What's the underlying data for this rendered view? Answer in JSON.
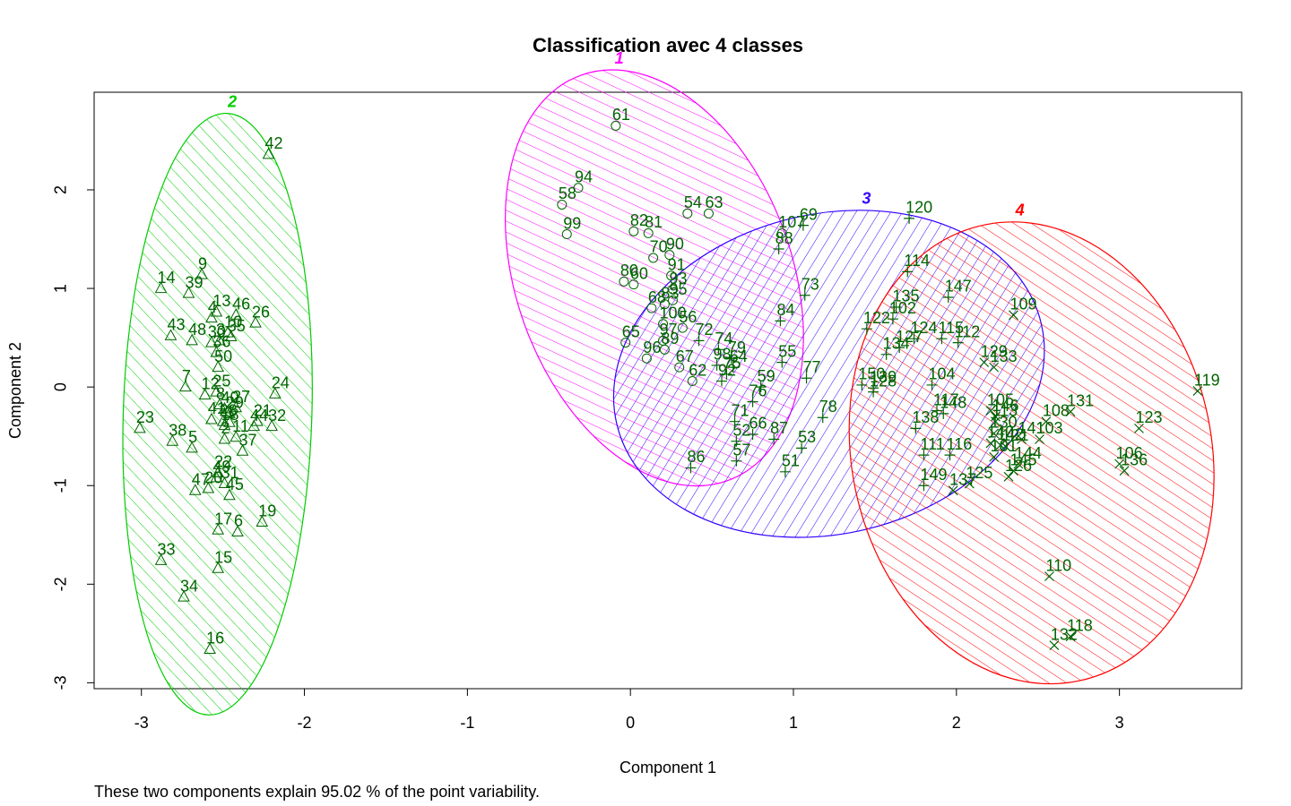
{
  "chart_data": {
    "type": "scatter",
    "title": "Classification avec 4 classes",
    "x_label": "Component 1",
    "y_label": "Component 2",
    "caption": "These two components explain 95.02 % of the point variability.",
    "xlim": [
      -3.29,
      3.75
    ],
    "ylim": [
      -3.06,
      2.99
    ],
    "xticks": [
      -3,
      -2,
      -1,
      0,
      1,
      2,
      3
    ],
    "yticks": [
      -3,
      -2,
      -1,
      0,
      1,
      2
    ],
    "point_color": "#006400",
    "shade": true,
    "series": [
      {
        "name": "1",
        "color": "#ff00ff",
        "marker": "circle",
        "labels": [
          61,
          94,
          58,
          99,
          54,
          63,
          82,
          81,
          70,
          90,
          91,
          80,
          60,
          93,
          68,
          83,
          95,
          100,
          56,
          65,
          97,
          89,
          96,
          62,
          67,
          107
        ],
        "x": [
          -0.09,
          -0.32,
          -0.42,
          -0.39,
          0.35,
          0.48,
          0.02,
          0.11,
          0.14,
          0.24,
          0.25,
          -0.04,
          0.02,
          0.26,
          0.13,
          0.21,
          0.26,
          0.2,
          0.32,
          -0.03,
          0.2,
          0.21,
          0.1,
          0.38,
          0.3,
          0.93
        ],
        "y": [
          2.65,
          2.02,
          1.85,
          1.55,
          1.76,
          1.76,
          1.58,
          1.56,
          1.31,
          1.34,
          1.13,
          1.07,
          1.04,
          0.99,
          0.8,
          0.84,
          0.88,
          0.64,
          0.6,
          0.45,
          0.47,
          0.38,
          0.29,
          0.06,
          0.2,
          1.56
        ]
      },
      {
        "name": "2",
        "color": "#00cc00",
        "marker": "triangle",
        "labels": [
          1,
          2,
          3,
          4,
          5,
          6,
          7,
          8,
          9,
          10,
          11,
          12,
          13,
          14,
          15,
          16,
          17,
          18,
          19,
          20,
          21,
          22,
          23,
          24,
          25,
          26,
          27,
          28,
          29,
          30,
          31,
          32,
          33,
          34,
          35,
          36,
          37,
          38,
          39,
          40,
          41,
          42,
          43,
          44,
          45,
          46,
          47,
          48,
          49,
          50
        ],
        "x": [
          -2.46,
          -2.49,
          -2.52,
          -2.57,
          -2.69,
          -2.41,
          -2.73,
          -2.52,
          -2.63,
          -2.47,
          -2.42,
          -2.61,
          -2.54,
          -2.88,
          -2.53,
          -2.58,
          -2.53,
          -2.49,
          -2.26,
          -2.59,
          -2.29,
          -2.53,
          -3.01,
          -2.18,
          -2.54,
          -2.3,
          -2.42,
          -2.5,
          -2.46,
          -2.57,
          -2.49,
          -2.2,
          -2.88,
          -2.74,
          -2.45,
          -2.54,
          -2.38,
          -2.81,
          -2.71,
          -2.49,
          -2.57,
          -2.22,
          -2.82,
          -2.31,
          -2.46,
          -2.42,
          -2.67,
          -2.69,
          -2.54,
          -2.53
        ],
        "y": [
          -0.36,
          -0.53,
          0.47,
          0.7,
          -0.62,
          -1.47,
          0.0,
          -0.18,
          1.14,
          0.55,
          -0.51,
          -0.08,
          0.76,
          1.0,
          -1.84,
          -2.66,
          -1.45,
          -0.39,
          -1.37,
          -1.03,
          -0.35,
          -0.87,
          -0.42,
          -0.07,
          -0.05,
          0.65,
          -0.21,
          -0.35,
          -0.27,
          0.45,
          -0.98,
          -0.4,
          -1.76,
          -2.13,
          0.51,
          0.35,
          -0.65,
          -0.55,
          0.95,
          -0.22,
          -0.33,
          2.36,
          0.52,
          -0.4,
          -1.1,
          0.73,
          -1.05,
          0.47,
          -0.92,
          0.2
        ]
      },
      {
        "name": "3",
        "color": "#3300ff",
        "marker": "plus",
        "labels": [
          69,
          120,
          114,
          73,
          135,
          102,
          147,
          122,
          84,
          124,
          115,
          112,
          134,
          127,
          72,
          74,
          79,
          98,
          64,
          75,
          92,
          55,
          77,
          59,
          150,
          139,
          128,
          104,
          76,
          117,
          148,
          78,
          138,
          71,
          66,
          87,
          52,
          53,
          57,
          111,
          116,
          86,
          51,
          149,
          88
        ],
        "x": [
          1.06,
          1.71,
          1.7,
          1.07,
          1.63,
          1.61,
          1.95,
          1.45,
          0.92,
          1.74,
          1.91,
          2.01,
          1.57,
          1.65,
          0.42,
          0.54,
          0.62,
          0.53,
          0.63,
          0.59,
          0.56,
          0.93,
          1.08,
          0.8,
          1.42,
          1.49,
          1.49,
          1.85,
          0.75,
          1.88,
          1.92,
          1.18,
          1.75,
          0.64,
          0.75,
          0.88,
          0.65,
          1.05,
          0.65,
          1.8,
          1.96,
          0.37,
          0.95,
          1.8,
          0.91
        ],
        "y": [
          1.64,
          1.71,
          1.17,
          0.93,
          0.81,
          0.69,
          0.91,
          0.59,
          0.67,
          0.49,
          0.49,
          0.45,
          0.33,
          0.4,
          0.47,
          0.38,
          0.29,
          0.22,
          0.2,
          0.13,
          0.06,
          0.25,
          0.09,
          0.0,
          0.02,
          -0.01,
          -0.05,
          0.02,
          -0.15,
          -0.24,
          -0.27,
          -0.31,
          -0.42,
          -0.35,
          -0.48,
          -0.53,
          -0.55,
          -0.62,
          -0.75,
          -0.69,
          -0.69,
          -0.82,
          -0.86,
          -1.0,
          1.4
        ]
      },
      {
        "name": "4",
        "color": "#ff0000",
        "marker": "cross",
        "labels": [
          109,
          119,
          129,
          133,
          131,
          123,
          108,
          105,
          146,
          113,
          103,
          141,
          130,
          140,
          142,
          121,
          101,
          144,
          145,
          125,
          137,
          126,
          136,
          106,
          110,
          118,
          132
        ],
        "x": [
          2.35,
          3.48,
          2.17,
          2.23,
          2.7,
          3.12,
          2.55,
          2.21,
          2.24,
          2.24,
          2.51,
          2.4,
          2.23,
          2.21,
          2.27,
          2.3,
          2.23,
          2.38,
          2.35,
          2.08,
          1.98,
          2.32,
          3.03,
          3.0,
          2.57,
          2.7,
          2.6
        ],
        "y": [
          0.73,
          -0.04,
          0.25,
          0.2,
          -0.25,
          -0.42,
          -0.35,
          -0.24,
          -0.3,
          -0.35,
          -0.53,
          -0.53,
          -0.47,
          -0.57,
          -0.59,
          -0.6,
          -0.71,
          -0.78,
          -0.85,
          -0.98,
          -1.05,
          -0.91,
          -0.85,
          -0.78,
          -1.92,
          -2.53,
          -2.62
        ]
      }
    ]
  }
}
